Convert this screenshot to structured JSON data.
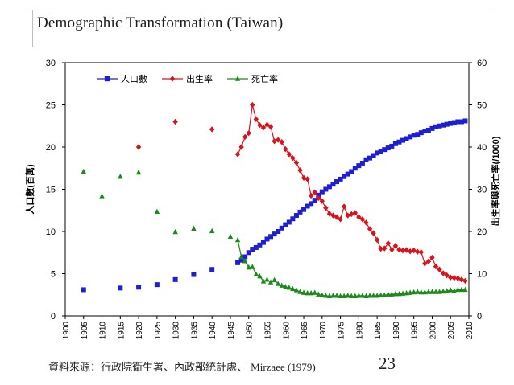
{
  "slide": {
    "title": "Demographic Transformation (Taiwan)",
    "source_text": "資料來源：行政院衛生署、內政部統計處、",
    "source_author": "Mirzaee (1979)",
    "page_number": "23"
  },
  "chart_data": {
    "type": "line",
    "y_left_label": "人口數(百萬)",
    "y_right_label": "出生率與死亡率(/1000)",
    "y_left_range": [
      0,
      30
    ],
    "y_right_range": [
      0,
      60
    ],
    "y_left_ticks": [
      "0",
      "5",
      "10",
      "15",
      "20",
      "25",
      "30"
    ],
    "y_right_ticks": [
      "0",
      "10",
      "20",
      "30",
      "40",
      "50",
      "60"
    ],
    "x_range": [
      1900,
      2010
    ],
    "x_ticks": [
      "1900",
      "1905",
      "1910",
      "1915",
      "1920",
      "1925",
      "1930",
      "1935",
      "1940",
      "1945",
      "1950",
      "1955",
      "1960",
      "1965",
      "1970",
      "1975",
      "1980",
      "1985",
      "1990",
      "1995",
      "2000",
      "2005",
      "2010"
    ],
    "legend": [
      "人口數",
      "出生率",
      "死亡率"
    ],
    "legend_position": "top-left",
    "series": [
      {
        "name": "人口數",
        "axis": "left",
        "color": "#1f1fd2",
        "marker": "square",
        "points": [
          [
            1905,
            3.1
          ],
          [
            1915,
            3.3
          ],
          [
            1920,
            3.4
          ],
          [
            1925,
            3.7
          ],
          [
            1930,
            4.3
          ],
          [
            1935,
            4.9
          ],
          [
            1940,
            5.5
          ],
          [
            1947,
            6.3
          ],
          [
            1948,
            6.6
          ],
          [
            1949,
            7.0
          ],
          [
            1950,
            7.5
          ],
          [
            1951,
            7.9
          ],
          [
            1952,
            8.1
          ],
          [
            1953,
            8.4
          ],
          [
            1954,
            8.7
          ],
          [
            1955,
            9.1
          ],
          [
            1956,
            9.4
          ],
          [
            1957,
            9.7
          ],
          [
            1958,
            10.0
          ],
          [
            1959,
            10.4
          ],
          [
            1960,
            10.8
          ],
          [
            1961,
            11.1
          ],
          [
            1962,
            11.5
          ],
          [
            1963,
            11.9
          ],
          [
            1964,
            12.3
          ],
          [
            1965,
            12.6
          ],
          [
            1966,
            13.0
          ],
          [
            1967,
            13.3
          ],
          [
            1968,
            13.7
          ],
          [
            1969,
            14.3
          ],
          [
            1970,
            14.7
          ],
          [
            1971,
            15.0
          ],
          [
            1972,
            15.3
          ],
          [
            1973,
            15.6
          ],
          [
            1974,
            15.9
          ],
          [
            1975,
            16.2
          ],
          [
            1976,
            16.5
          ],
          [
            1977,
            16.8
          ],
          [
            1978,
            17.1
          ],
          [
            1979,
            17.5
          ],
          [
            1980,
            17.8
          ],
          [
            1981,
            18.1
          ],
          [
            1982,
            18.5
          ],
          [
            1983,
            18.7
          ],
          [
            1984,
            19.0
          ],
          [
            1985,
            19.3
          ],
          [
            1986,
            19.5
          ],
          [
            1987,
            19.7
          ],
          [
            1988,
            19.9
          ],
          [
            1989,
            20.1
          ],
          [
            1990,
            20.4
          ],
          [
            1991,
            20.6
          ],
          [
            1992,
            20.8
          ],
          [
            1993,
            21.0
          ],
          [
            1994,
            21.2
          ],
          [
            1995,
            21.4
          ],
          [
            1996,
            21.5
          ],
          [
            1997,
            21.7
          ],
          [
            1998,
            21.9
          ],
          [
            1999,
            22.0
          ],
          [
            2000,
            22.2
          ],
          [
            2001,
            22.4
          ],
          [
            2002,
            22.5
          ],
          [
            2003,
            22.6
          ],
          [
            2004,
            22.7
          ],
          [
            2005,
            22.8
          ],
          [
            2006,
            22.9
          ],
          [
            2007,
            23.0
          ],
          [
            2008,
            23.0
          ],
          [
            2009,
            23.1
          ]
        ]
      },
      {
        "name": "出生率",
        "axis": "right",
        "color": "#d7141e",
        "marker": "diamond",
        "points": [
          [
            1920,
            40.0
          ],
          [
            1930,
            46.0
          ],
          [
            1940,
            44.2
          ],
          [
            1947,
            38.3
          ],
          [
            1948,
            40.0
          ],
          [
            1949,
            42.4
          ],
          [
            1950,
            43.3
          ],
          [
            1951,
            50.0
          ],
          [
            1952,
            46.6
          ],
          [
            1953,
            45.2
          ],
          [
            1954,
            44.6
          ],
          [
            1955,
            45.3
          ],
          [
            1956,
            44.8
          ],
          [
            1957,
            41.4
          ],
          [
            1958,
            41.7
          ],
          [
            1959,
            41.2
          ],
          [
            1960,
            39.5
          ],
          [
            1961,
            38.3
          ],
          [
            1962,
            37.4
          ],
          [
            1963,
            36.3
          ],
          [
            1964,
            34.5
          ],
          [
            1965,
            32.7
          ],
          [
            1966,
            32.4
          ],
          [
            1967,
            28.5
          ],
          [
            1968,
            29.3
          ],
          [
            1969,
            27.9
          ],
          [
            1970,
            27.2
          ],
          [
            1971,
            25.6
          ],
          [
            1972,
            24.2
          ],
          [
            1973,
            23.8
          ],
          [
            1974,
            23.4
          ],
          [
            1975,
            22.9
          ],
          [
            1976,
            25.9
          ],
          [
            1977,
            23.8
          ],
          [
            1978,
            24.1
          ],
          [
            1979,
            24.4
          ],
          [
            1980,
            23.4
          ],
          [
            1981,
            22.9
          ],
          [
            1982,
            22.1
          ],
          [
            1983,
            20.6
          ],
          [
            1984,
            19.6
          ],
          [
            1985,
            18.0
          ],
          [
            1986,
            15.9
          ],
          [
            1987,
            16.0
          ],
          [
            1988,
            17.2
          ],
          [
            1989,
            15.7
          ],
          [
            1990,
            16.6
          ],
          [
            1991,
            15.7
          ],
          [
            1992,
            15.5
          ],
          [
            1993,
            15.6
          ],
          [
            1994,
            15.3
          ],
          [
            1995,
            15.5
          ],
          [
            1996,
            15.2
          ],
          [
            1997,
            15.1
          ],
          [
            1998,
            12.4
          ],
          [
            1999,
            12.9
          ],
          [
            2000,
            13.8
          ],
          [
            2001,
            11.7
          ],
          [
            2002,
            11.0
          ],
          [
            2003,
            10.1
          ],
          [
            2004,
            9.6
          ],
          [
            2005,
            9.1
          ],
          [
            2006,
            9.0
          ],
          [
            2007,
            8.9
          ],
          [
            2008,
            8.6
          ],
          [
            2009,
            8.3
          ]
        ]
      },
      {
        "name": "死亡率",
        "axis": "right",
        "color": "#1b8a1b",
        "marker": "triangle",
        "points": [
          [
            1905,
            34.2
          ],
          [
            1910,
            28.4
          ],
          [
            1915,
            33.0
          ],
          [
            1920,
            34.0
          ],
          [
            1925,
            24.7
          ],
          [
            1930,
            19.9
          ],
          [
            1935,
            20.7
          ],
          [
            1940,
            20.1
          ],
          [
            1945,
            18.8
          ],
          [
            1947,
            18.0
          ],
          [
            1948,
            14.0
          ],
          [
            1949,
            13.0
          ],
          [
            1950,
            11.5
          ],
          [
            1951,
            11.6
          ],
          [
            1952,
            9.9
          ],
          [
            1953,
            9.4
          ],
          [
            1954,
            8.2
          ],
          [
            1955,
            8.6
          ],
          [
            1956,
            8.0
          ],
          [
            1957,
            8.5
          ],
          [
            1958,
            7.6
          ],
          [
            1959,
            7.2
          ],
          [
            1960,
            6.9
          ],
          [
            1961,
            6.7
          ],
          [
            1962,
            6.4
          ],
          [
            1963,
            6.1
          ],
          [
            1964,
            5.7
          ],
          [
            1965,
            5.5
          ],
          [
            1966,
            5.4
          ],
          [
            1967,
            5.4
          ],
          [
            1968,
            5.5
          ],
          [
            1969,
            5.1
          ],
          [
            1970,
            4.9
          ],
          [
            1971,
            4.8
          ],
          [
            1972,
            4.7
          ],
          [
            1973,
            4.8
          ],
          [
            1974,
            4.8
          ],
          [
            1975,
            4.7
          ],
          [
            1976,
            4.7
          ],
          [
            1977,
            4.8
          ],
          [
            1978,
            4.7
          ],
          [
            1979,
            4.7
          ],
          [
            1980,
            4.8
          ],
          [
            1981,
            4.8
          ],
          [
            1982,
            4.7
          ],
          [
            1983,
            4.8
          ],
          [
            1984,
            4.8
          ],
          [
            1985,
            4.8
          ],
          [
            1986,
            4.9
          ],
          [
            1987,
            4.9
          ],
          [
            1988,
            5.1
          ],
          [
            1989,
            5.1
          ],
          [
            1990,
            5.2
          ],
          [
            1991,
            5.2
          ],
          [
            1992,
            5.3
          ],
          [
            1993,
            5.4
          ],
          [
            1994,
            5.5
          ],
          [
            1995,
            5.6
          ],
          [
            1996,
            5.7
          ],
          [
            1997,
            5.6
          ],
          [
            1998,
            5.6
          ],
          [
            1999,
            5.7
          ],
          [
            2000,
            5.7
          ],
          [
            2001,
            5.7
          ],
          [
            2002,
            5.7
          ],
          [
            2003,
            5.8
          ],
          [
            2004,
            5.9
          ],
          [
            2005,
            6.1
          ],
          [
            2006,
            5.9
          ],
          [
            2007,
            6.2
          ],
          [
            2008,
            6.2
          ],
          [
            2009,
            6.2
          ]
        ]
      }
    ]
  }
}
